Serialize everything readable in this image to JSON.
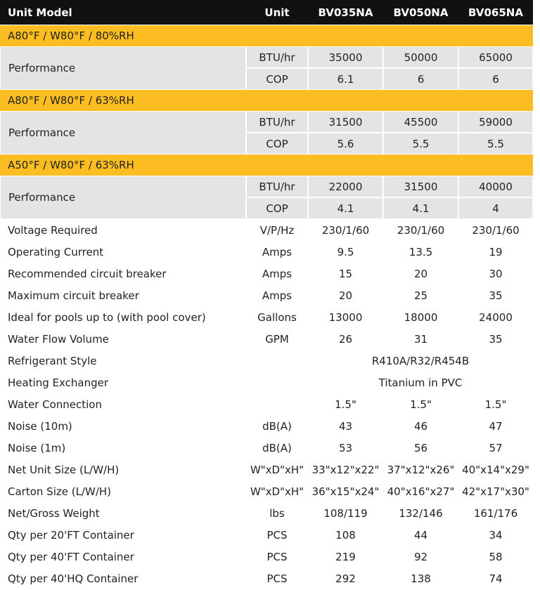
{
  "header": [
    "Unit Model",
    "Unit",
    "BV035NA",
    "BV050NA",
    "BV065NA"
  ],
  "sections": [
    {
      "title": "A80°F / W80°F / 80%RH",
      "label": "Performance",
      "rows": [
        [
          "BTU/hr",
          "35000",
          "50000",
          "65000"
        ],
        [
          "COP",
          "6.1",
          "6",
          "6"
        ]
      ]
    },
    {
      "title": "A80°F / W80°F / 63%RH",
      "label": "Performance",
      "rows": [
        [
          "BTU/hr",
          "31500",
          "45500",
          "59000"
        ],
        [
          "COP",
          "5.6",
          "5.5",
          "5.5"
        ]
      ]
    },
    {
      "title": "A50°F / W80°F / 63%RH",
      "label": "Performance",
      "rows": [
        [
          "BTU/hr",
          "22000",
          "31500",
          "40000"
        ],
        [
          "COP",
          "4.1",
          "4.1",
          "4"
        ]
      ]
    }
  ],
  "rows": [
    {
      "label": "Voltage Required",
      "unit": "V/P/Hz",
      "values": [
        "230/1/60",
        "230/1/60",
        "230/1/60"
      ]
    },
    {
      "label": "Operating Current",
      "unit": "Amps",
      "values": [
        "9.5",
        "13.5",
        "19"
      ]
    },
    {
      "label": "Recommended circuit breaker",
      "unit": "Amps",
      "values": [
        "15",
        "20",
        "30"
      ]
    },
    {
      "label": "Maximum circuit breaker",
      "unit": "Amps",
      "values": [
        "20",
        "25",
        "35"
      ]
    },
    {
      "label": "Ideal for pools up to (with pool cover)",
      "unit": "Gallons",
      "values": [
        "13000",
        "18000",
        "24000"
      ]
    },
    {
      "label": "Water Flow Volume",
      "unit": "GPM",
      "values": [
        "26",
        "31",
        "35"
      ]
    },
    {
      "label": "Refrigerant Style",
      "value": "R410A/R32/R454B"
    },
    {
      "label": "Heating Exchanger",
      "value": "Titanium in PVC"
    },
    {
      "label": "Water Connection",
      "values": [
        "1.5\"",
        "1.5\"",
        "1.5\""
      ]
    },
    {
      "label": "Noise (10m)",
      "unit": "dB(A)",
      "values": [
        "43",
        "46",
        "47"
      ]
    },
    {
      "label": "Noise (1m)",
      "unit": "dB(A)",
      "values": [
        "53",
        "56",
        "57"
      ]
    },
    {
      "label": "Net Unit Size (L/W/H)",
      "unit": "W\"xD\"xH\"",
      "values": [
        "33\"x12\"x22\"",
        "37\"x12\"x26\"",
        "40\"x14\"x29\""
      ]
    },
    {
      "label": "Carton Size (L/W/H)",
      "unit": "W\"xD\"xH\"",
      "values": [
        "36\"x15\"x24\"",
        "40\"x16\"x27\"",
        "42\"x17\"x30\""
      ]
    },
    {
      "label": "Net/Gross Weight",
      "unit": "lbs",
      "values": [
        "108/119",
        "132/146",
        "161/176"
      ]
    },
    {
      "label": "Qty per 20'FT Container",
      "unit": "PCS",
      "values": [
        "108",
        "44",
        "34"
      ]
    },
    {
      "label": "Qty per 40'FT Container",
      "unit": "PCS",
      "values": [
        "219",
        "92",
        "58"
      ]
    },
    {
      "label": "Qty per 40'HQ Container",
      "unit": "PCS",
      "values": [
        "292",
        "138",
        "74"
      ]
    }
  ]
}
